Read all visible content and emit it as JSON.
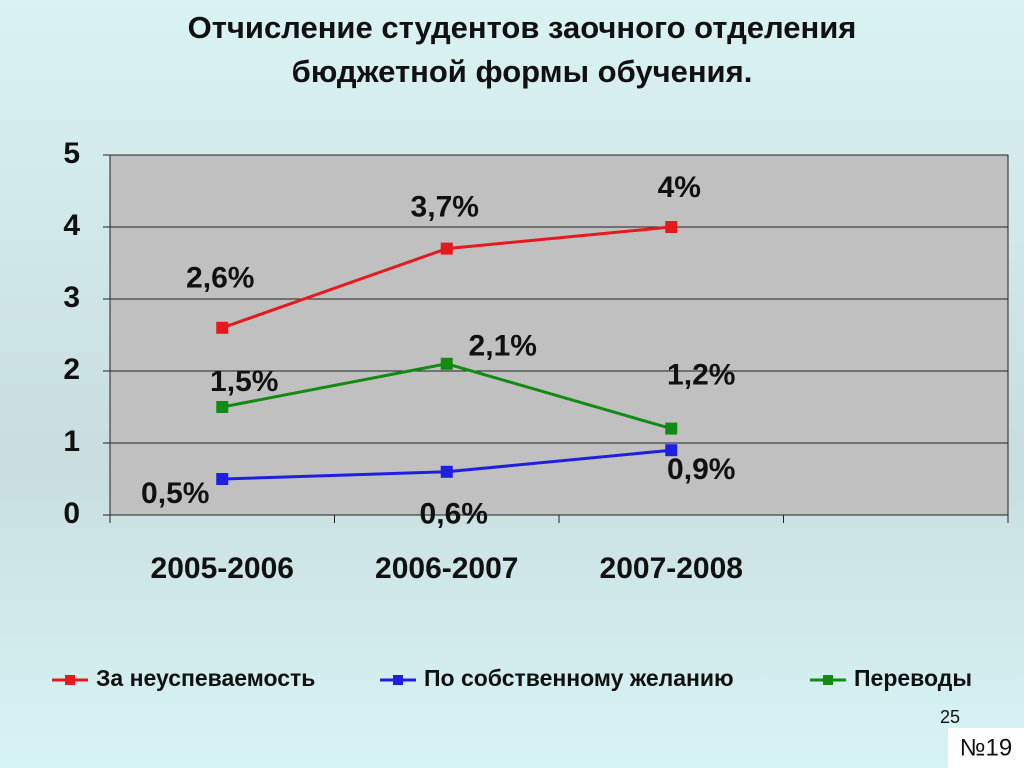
{
  "chart_data": {
    "type": "line",
    "title": [
      "Отчисление студентов заочного отделения",
      "бюджетной формы обучения."
    ],
    "categories": [
      "2005-2006",
      "2006-2007",
      "2007-2008",
      null
    ],
    "series": [
      {
        "name": "За неуспеваемость",
        "color": "#e41a1c",
        "values": [
          2.6,
          3.7,
          4,
          null
        ],
        "value_labels": [
          "2,6%",
          "3,7%",
          "4%",
          null
        ]
      },
      {
        "name": "По собственному желанию",
        "color": "#1f1fe0",
        "values": [
          0.5,
          0.6,
          0.9,
          null
        ],
        "value_labels": [
          "0,5%",
          "0,6%",
          "0,9%",
          null
        ]
      },
      {
        "name": "Переводы",
        "color": "#138a13",
        "values": [
          1.5,
          2.1,
          1.2,
          null
        ],
        "value_labels": [
          "1,5%",
          "2,1%",
          "1,2%",
          null
        ]
      }
    ],
    "ylim": [
      0,
      5
    ],
    "yticks": [
      0,
      1,
      2,
      3,
      4,
      5
    ],
    "grid": true,
    "legend": "bottom"
  },
  "page_number": "25",
  "slide_label": "№19"
}
